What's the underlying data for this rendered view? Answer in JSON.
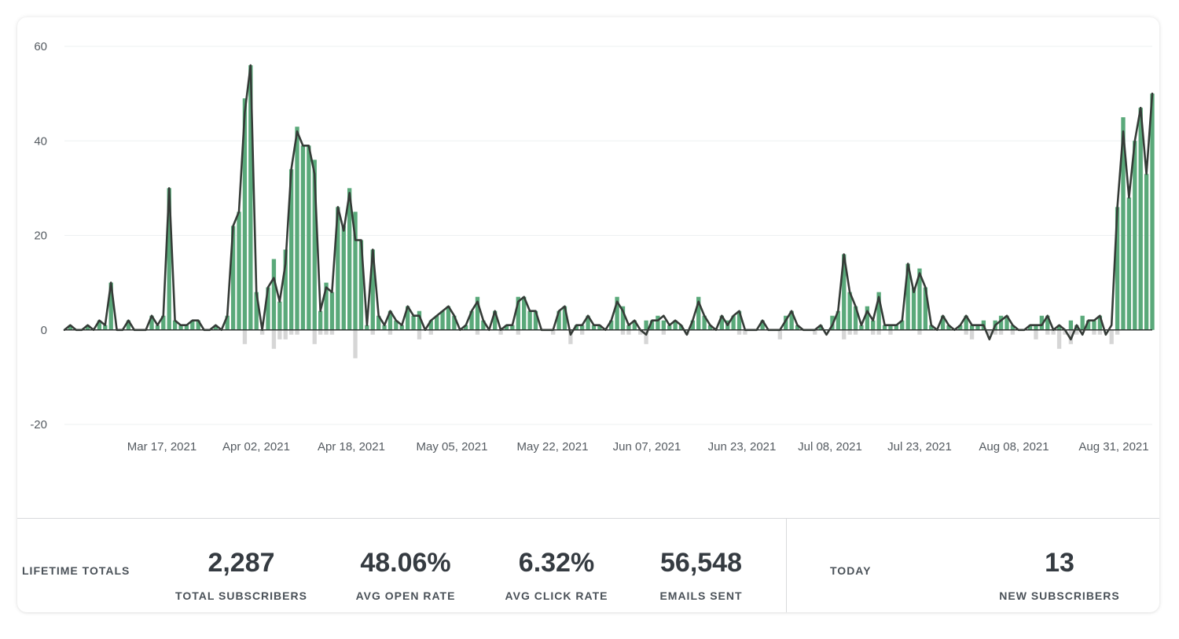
{
  "chart_data": {
    "type": "bar",
    "ylim": [
      -20,
      60
    ],
    "yticks": [
      60,
      40,
      20,
      0,
      -20
    ],
    "xlabels": [
      "Mar 17, 2021",
      "Apr 02, 2021",
      "Apr 18, 2021",
      "May 05, 2021",
      "May 22, 2021",
      "Jun 07, 2021",
      "Jun 23, 2021",
      "Jul 08, 2021",
      "Jul 23, 2021",
      "Aug 08, 2021",
      "Aug 31, 2021"
    ],
    "grid": true,
    "colors": {
      "positive": "#5aa97a",
      "negative": "#d6d6d6",
      "line": "#353b37"
    },
    "series": [
      {
        "values": [
          0,
          1,
          0,
          0,
          1,
          0,
          2,
          1,
          10,
          0,
          0,
          2,
          0,
          0,
          0,
          3,
          1,
          3,
          30,
          2,
          1,
          1,
          2,
          2,
          0,
          0,
          1,
          0,
          3,
          22,
          25,
          49,
          56,
          8,
          0,
          9,
          15,
          6,
          17,
          34,
          43,
          39,
          39,
          36,
          4,
          10,
          8,
          26,
          22,
          30,
          25,
          19,
          1,
          17,
          3,
          1,
          4,
          2,
          1,
          5,
          3,
          4,
          0,
          2,
          3,
          4,
          5,
          3,
          0,
          1,
          4,
          7,
          2,
          0,
          4,
          0,
          1,
          1,
          7,
          7,
          4,
          4,
          0,
          0,
          0,
          4,
          5,
          0,
          1,
          1,
          3,
          1,
          1,
          0,
          2,
          7,
          5,
          1,
          2,
          0,
          2,
          2,
          3,
          2,
          1,
          2,
          1,
          0,
          2,
          7,
          3,
          1,
          0,
          3,
          2,
          3,
          4,
          0,
          0,
          0,
          2,
          0,
          0,
          0,
          3,
          4,
          1,
          0,
          0,
          0,
          1,
          0,
          3,
          4,
          16,
          8,
          5,
          1,
          5,
          2,
          8,
          1,
          1,
          1,
          2,
          14,
          9,
          13,
          9,
          1,
          0,
          3,
          1,
          0,
          1,
          3,
          1,
          1,
          2,
          0,
          2,
          3,
          3,
          1,
          0,
          0,
          1,
          1,
          3,
          3,
          0,
          1,
          0,
          2,
          1,
          3,
          2,
          2,
          3,
          0,
          0,
          26,
          45,
          28,
          40,
          47,
          33,
          50
        ]
      },
      {
        "values": [
          0,
          1,
          0,
          0,
          1,
          0,
          2,
          1,
          10,
          0,
          0,
          2,
          0,
          0,
          0,
          3,
          1,
          3,
          30,
          2,
          1,
          1,
          2,
          2,
          0,
          0,
          1,
          0,
          3,
          22,
          25,
          46,
          56,
          8,
          0,
          9,
          11,
          6,
          14,
          34,
          42,
          39,
          39,
          33,
          4,
          9,
          8,
          26,
          21,
          29,
          19,
          19,
          1,
          17,
          3,
          1,
          4,
          2,
          1,
          5,
          3,
          3,
          0,
          2,
          3,
          4,
          5,
          3,
          0,
          1,
          4,
          6,
          2,
          0,
          4,
          0,
          1,
          1,
          6,
          7,
          4,
          4,
          0,
          0,
          0,
          4,
          5,
          -1,
          1,
          1,
          3,
          1,
          1,
          0,
          2,
          6,
          4,
          1,
          2,
          0,
          -1,
          2,
          2,
          3,
          1,
          2,
          1,
          -1,
          2,
          6,
          3,
          1,
          0,
          3,
          1,
          3,
          4,
          0,
          0,
          0,
          2,
          0,
          0,
          0,
          2,
          4,
          1,
          0,
          0,
          0,
          1,
          -1,
          1,
          4,
          16,
          8,
          5,
          1,
          4,
          2,
          7,
          1,
          1,
          1,
          2,
          14,
          8,
          12,
          9,
          1,
          0,
          3,
          1,
          0,
          1,
          3,
          1,
          1,
          1,
          -2,
          1,
          2,
          3,
          1,
          0,
          0,
          1,
          1,
          1,
          3,
          0,
          1,
          0,
          -2,
          1,
          -1,
          2,
          2,
          3,
          -1,
          1,
          26,
          42,
          28,
          40,
          47,
          33,
          50
        ]
      },
      {
        "values": [
          0,
          0,
          0,
          0,
          0,
          0,
          0,
          0,
          0,
          0,
          0,
          0,
          0,
          0,
          0,
          0,
          0,
          0,
          0,
          0,
          0,
          0,
          0,
          0,
          0,
          0,
          0,
          0,
          0,
          0,
          0,
          -3,
          0,
          0,
          -1,
          0,
          -4,
          -2,
          -2,
          -1,
          -1,
          0,
          0,
          -3,
          -1,
          -1,
          -1,
          0,
          0,
          0,
          -6,
          0,
          0,
          -1,
          0,
          0,
          -1,
          0,
          0,
          0,
          0,
          -2,
          0,
          -1,
          0,
          0,
          0,
          0,
          0,
          0,
          0,
          -1,
          0,
          0,
          0,
          -1,
          0,
          0,
          -1,
          0,
          0,
          0,
          0,
          0,
          -1,
          0,
          0,
          -3,
          0,
          -1,
          0,
          0,
          0,
          0,
          0,
          0,
          -1,
          -1,
          0,
          -1,
          -3,
          0,
          0,
          -1,
          0,
          0,
          0,
          -1,
          0,
          0,
          0,
          0,
          0,
          0,
          0,
          0,
          -1,
          -1,
          0,
          0,
          0,
          0,
          0,
          -2,
          0,
          0,
          0,
          0,
          0,
          -1,
          0,
          0,
          0,
          0,
          -2,
          -1,
          -1,
          0,
          0,
          -1,
          -1,
          0,
          -1,
          0,
          0,
          0,
          0,
          -1,
          0,
          0,
          0,
          0,
          0,
          0,
          0,
          -1,
          -2,
          0,
          0,
          -1,
          -1,
          -1,
          0,
          -1,
          0,
          0,
          0,
          -2,
          0,
          -1,
          -1,
          -4,
          -1,
          -3,
          -1,
          0,
          0,
          -1,
          -1,
          0,
          -3,
          -1,
          0,
          0,
          0,
          0
        ]
      }
    ]
  },
  "stats": {
    "lifetime_label": "LIFETIME TOTALS",
    "total_subscribers": "2,287",
    "total_subscribers_label": "TOTAL SUBSCRIBERS",
    "avg_open_rate": "48.06%",
    "avg_open_rate_label": "AVG OPEN RATE",
    "avg_click_rate": "6.32%",
    "avg_click_rate_label": "AVG CLICK RATE",
    "emails_sent": "56,548",
    "emails_sent_label": "EMAILS SENT",
    "today_label": "TODAY",
    "new_subscribers": "13",
    "new_subscribers_label": "NEW SUBSCRIBERS"
  }
}
